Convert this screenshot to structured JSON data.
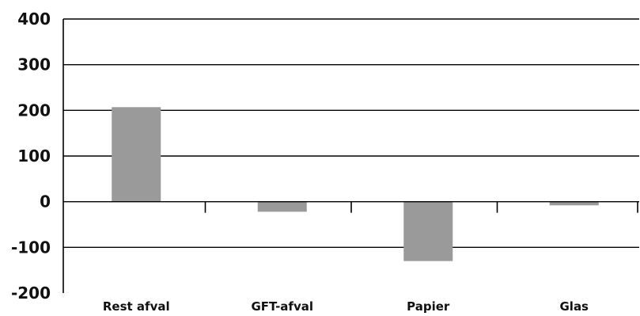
{
  "chart_data": {
    "type": "bar",
    "title": "",
    "xlabel": "",
    "ylabel": "",
    "categories": [
      "Rest afval",
      "GFT-afval",
      "Papier",
      "Glas"
    ],
    "values": [
      207,
      -22,
      -130,
      -8
    ],
    "ylim": [
      -200,
      400
    ],
    "yticks": [
      400,
      300,
      200,
      100,
      0,
      -100,
      -200
    ],
    "ytick_labels": [
      "400",
      "300",
      "200",
      "100",
      "0",
      "-100",
      "-200"
    ],
    "grid": true,
    "bar_color": "#9a9a9a"
  }
}
